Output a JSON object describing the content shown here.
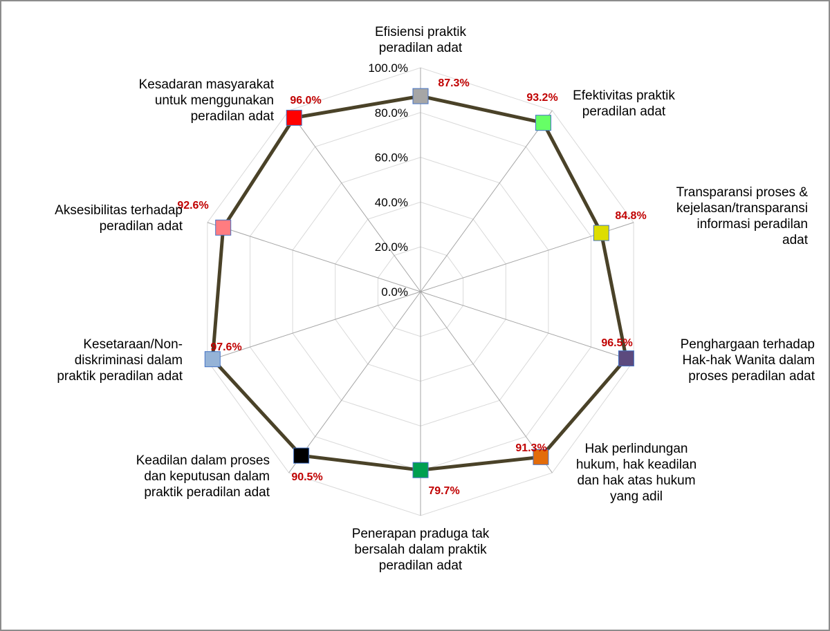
{
  "chart_data": {
    "type": "radar",
    "title": "",
    "rlim": [
      0,
      100
    ],
    "grid": true,
    "legend": "none",
    "tick_labels": [
      "0.0%",
      "20.0%",
      "40.0%",
      "60.0%",
      "80.0%",
      "100.0%"
    ],
    "series": [
      {
        "line_color": "#4a4228"
      }
    ],
    "categories": [
      {
        "label_lines": [
          "Efisiensi praktik",
          "peradilan adat"
        ],
        "value": 87.3,
        "value_label": "87.3%",
        "marker_color": "#a6a6a6"
      },
      {
        "label_lines": [
          "Efektivitas praktik",
          "peradilan adat"
        ],
        "value": 93.2,
        "value_label": "93.2%",
        "marker_color": "#66ff66"
      },
      {
        "label_lines": [
          "Transparansi proses &",
          "kejelasan/transparansi",
          "informasi peradilan",
          "adat"
        ],
        "value": 84.8,
        "value_label": "84.8%",
        "marker_color": "#dddd00"
      },
      {
        "label_lines": [
          "Penghargaan terhadap",
          "Hak-hak Wanita dalam",
          "proses peradilan adat"
        ],
        "value": 96.5,
        "value_label": "96.5%",
        "marker_color": "#5c4a7e"
      },
      {
        "label_lines": [
          "Hak perlindungan",
          "hukum, hak keadilan",
          "dan hak atas hukum",
          "yang adil"
        ],
        "value": 91.3,
        "value_label": "91.3%",
        "marker_color": "#e36c0a"
      },
      {
        "label_lines": [
          "Penerapan praduga tak",
          "bersalah dalam praktik",
          "peradilan adat"
        ],
        "value": 79.7,
        "value_label": "79.7%",
        "marker_color": "#00a050"
      },
      {
        "label_lines": [
          "Keadilan dalam proses",
          "dan keputusan dalam",
          "praktik peradilan adat"
        ],
        "value": 90.5,
        "value_label": "90.5%",
        "marker_color": "#000000"
      },
      {
        "label_lines": [
          "Kesetaraan/Non-",
          "diskriminasi dalam",
          "praktik peradilan adat"
        ],
        "value": 97.6,
        "value_label": "97.6%",
        "marker_color": "#95b3d7"
      },
      {
        "label_lines": [
          "Aksesibilitas terhadap",
          "peradilan adat"
        ],
        "value": 92.6,
        "value_label": "92.6%",
        "marker_color": "#ff7c80"
      },
      {
        "label_lines": [
          "Kesadaran masyarakat",
          "untuk menggunakan",
          "peradilan adat"
        ],
        "value": 96.0,
        "value_label": "96.0%",
        "marker_color": "#ff0000"
      }
    ]
  }
}
